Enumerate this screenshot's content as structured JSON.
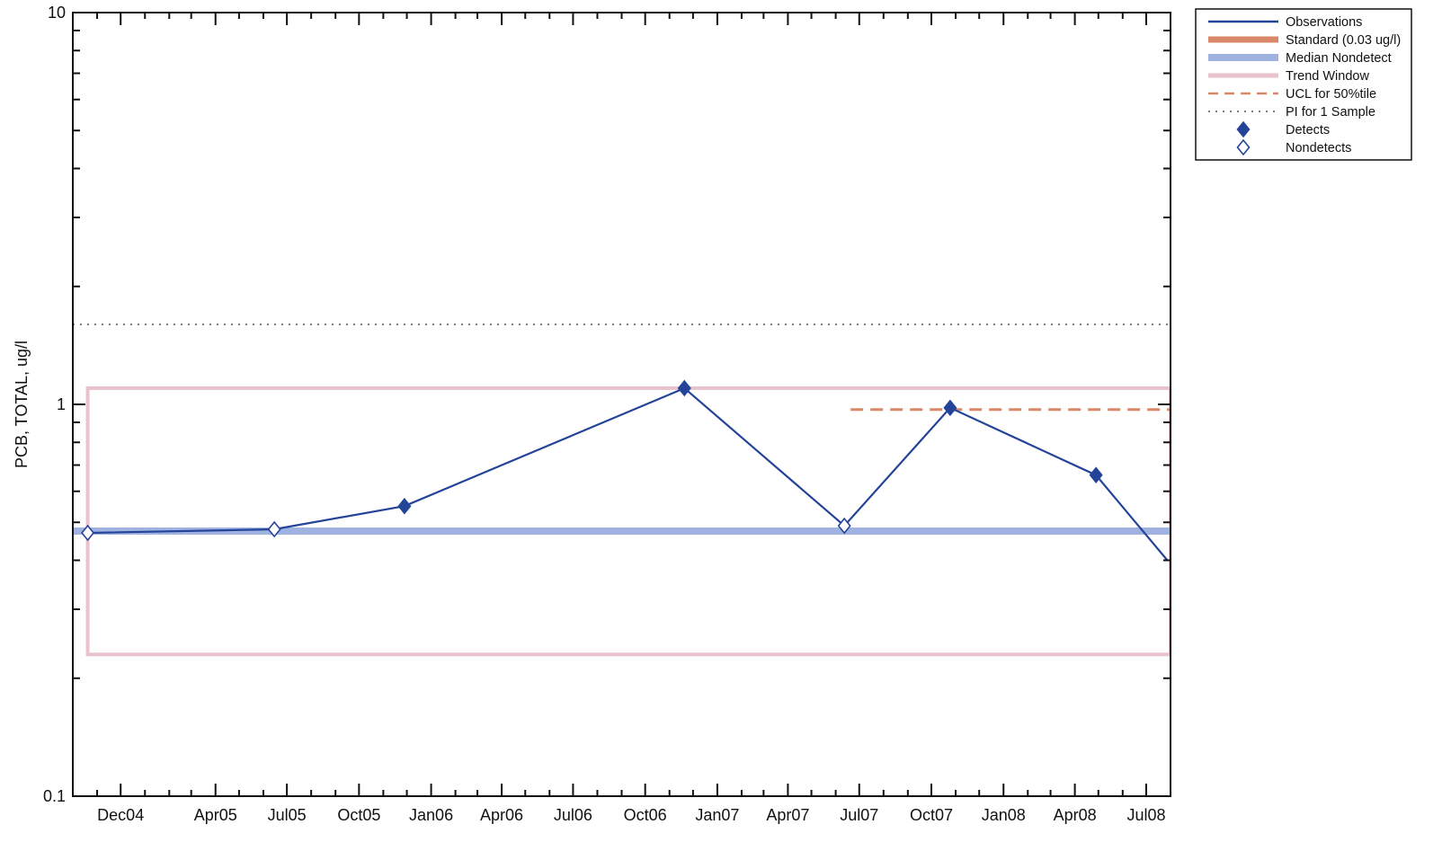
{
  "chart_data": {
    "type": "line",
    "ylabel": "PCB, TOTAL, ug/l",
    "yscale": "log",
    "ylim": [
      0.1,
      10
    ],
    "ytick_labels": [
      "0.1",
      "1",
      "10"
    ],
    "xlim": [
      "2004-10-01",
      "2008-08-01"
    ],
    "x_tick_labels": [
      "Dec04",
      "Apr05",
      "Jul05",
      "Oct05",
      "Jan06",
      "Apr06",
      "Jul06",
      "Oct06",
      "Jan07",
      "Apr07",
      "Jul07",
      "Oct07",
      "Jan08",
      "Apr08",
      "Jul08"
    ],
    "x_tick_dates": [
      "2004-12-01",
      "2005-04-01",
      "2005-07-01",
      "2005-10-01",
      "2006-01-01",
      "2006-04-01",
      "2006-07-01",
      "2006-10-01",
      "2007-01-01",
      "2007-04-01",
      "2007-07-01",
      "2007-10-01",
      "2008-01-01",
      "2008-04-01",
      "2008-07-01"
    ],
    "series": [
      {
        "name": "Observations",
        "color": "#24449a",
        "points": [
          {
            "x": "2004-10-20",
            "y": 0.47,
            "detect": false
          },
          {
            "x": "2005-06-15",
            "y": 0.48,
            "detect": false
          },
          {
            "x": "2005-11-28",
            "y": 0.55,
            "detect": true
          },
          {
            "x": "2006-11-20",
            "y": 1.1,
            "detect": true
          },
          {
            "x": "2007-06-12",
            "y": 0.49,
            "detect": false
          },
          {
            "x": "2007-10-25",
            "y": 0.98,
            "detect": true
          },
          {
            "x": "2008-04-28",
            "y": 0.66,
            "detect": true
          },
          {
            "x": "2008-07-28",
            "y": 0.4,
            "detect": null
          }
        ]
      }
    ],
    "standard": {
      "name": "Standard (0.03 ug/l)",
      "value": 0.03,
      "color": "#d9896a"
    },
    "median_nondetect": {
      "name": "Median Nondetect",
      "value": 0.475,
      "color": "#9fb2e0"
    },
    "trend_window": {
      "name": "Trend Window",
      "x": [
        "2004-10-20",
        "2008-08-01"
      ],
      "y": [
        0.23,
        1.1
      ],
      "color": "#e8c3cc"
    },
    "ucl": {
      "name": "UCL for 50%tile",
      "x": [
        "2007-06-20",
        "2008-08-01"
      ],
      "y": 0.97,
      "color": "#d9896a"
    },
    "pi": {
      "name": "PI for 1 Sample",
      "y": 1.6,
      "color": "#555555"
    },
    "legend": {
      "placement": "outside top-right",
      "entries": [
        "Observations",
        "Standard (0.03 ug/l)",
        "Median Nondetect",
        "Trend Window",
        "UCL for 50%tile",
        "PI for 1 Sample",
        "Detects",
        "Nondetects"
      ]
    },
    "grid": false
  }
}
